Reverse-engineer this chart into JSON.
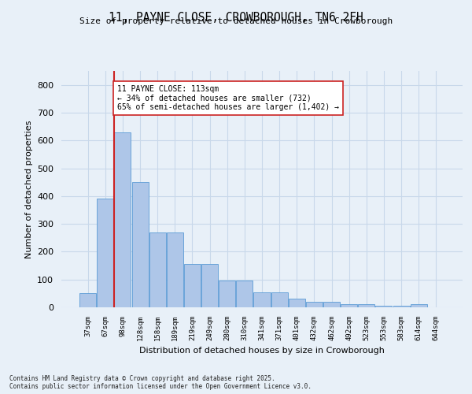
{
  "title": "11, PAYNE CLOSE, CROWBOROUGH, TN6 2FH",
  "subtitle": "Size of property relative to detached houses in Crowborough",
  "xlabel": "Distribution of detached houses by size in Crowborough",
  "ylabel": "Number of detached properties",
  "bin_labels": [
    "37sqm",
    "67sqm",
    "98sqm",
    "128sqm",
    "158sqm",
    "189sqm",
    "219sqm",
    "249sqm",
    "280sqm",
    "310sqm",
    "341sqm",
    "371sqm",
    "401sqm",
    "432sqm",
    "462sqm",
    "492sqm",
    "523sqm",
    "553sqm",
    "583sqm",
    "614sqm",
    "644sqm"
  ],
  "bar_heights": [
    50,
    390,
    630,
    450,
    270,
    270,
    155,
    155,
    95,
    95,
    55,
    55,
    30,
    20,
    20,
    10,
    10,
    5,
    5,
    10,
    0
  ],
  "bar_color": "#aec6e8",
  "bar_edge_color": "#5b9bd5",
  "grid_color": "#c8d8ea",
  "background_color": "#e8f0f8",
  "property_line_x": 1.5,
  "property_line_color": "#cc2222",
  "annotation_text": "11 PAYNE CLOSE: 113sqm\n← 34% of detached houses are smaller (732)\n65% of semi-detached houses are larger (1,402) →",
  "annotation_box_color": "#ffffff",
  "annotation_edge_color": "#cc2222",
  "footer_text": "Contains HM Land Registry data © Crown copyright and database right 2025.\nContains public sector information licensed under the Open Government Licence v3.0.",
  "ylim": [
    0,
    850
  ],
  "yticks": [
    0,
    100,
    200,
    300,
    400,
    500,
    600,
    700,
    800
  ]
}
